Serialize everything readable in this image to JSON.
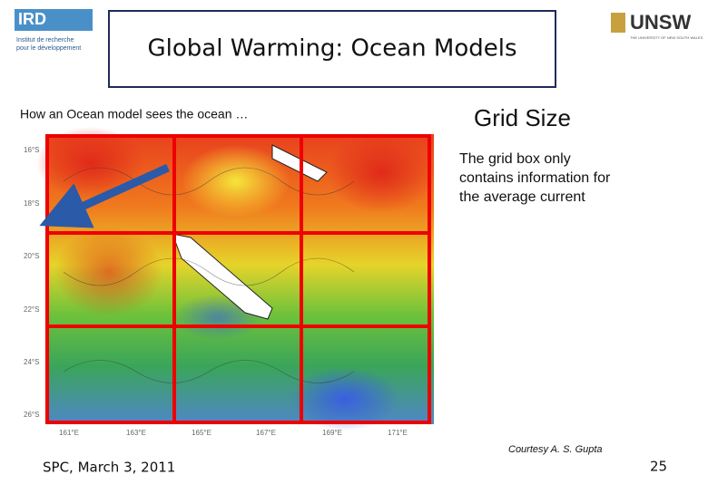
{
  "logos": {
    "left": {
      "name": "IRD",
      "text": [
        "Institut de recherche",
        "pour le développement"
      ]
    },
    "right": {
      "name": "UNSW",
      "text": "THE UNIVERSITY OF NEW SOUTH WALES"
    }
  },
  "header": {
    "title": "Global Warming: Ocean Models"
  },
  "left_caption": "How an Ocean model sees the ocean …",
  "map": {
    "lat_labels": [
      "16°S",
      "18°S",
      "20°S",
      "22°S",
      "24°S",
      "26°S"
    ],
    "lon_labels": [
      "161°E",
      "163°E",
      "165°E",
      "167°E",
      "169°E",
      "171°E"
    ]
  },
  "right_panel": {
    "heading": "Grid Size",
    "text": [
      "The grid box only",
      "contains information for",
      "the average current"
    ],
    "credit": "Courtesy A. S. Gupta"
  },
  "footer": {
    "date": "SPC, March 3, 2011",
    "page": "25"
  }
}
